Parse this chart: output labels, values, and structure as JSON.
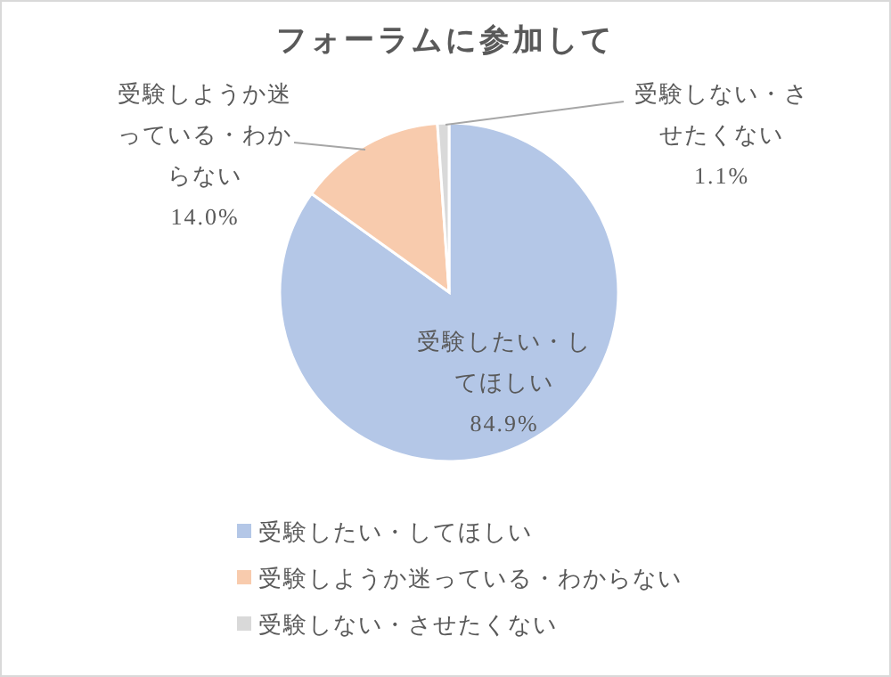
{
  "chart_data": {
    "type": "pie",
    "title": "フォーラムに参加して",
    "categories": [
      "受験したい・してほしい",
      "受験しようか迷っている・わからない",
      "受験しない・させたくない"
    ],
    "values": [
      84.9,
      14.0,
      1.1
    ],
    "colors": [
      "#b4c7e7",
      "#f8cbad",
      "#d9d9d9"
    ],
    "data_labels": true,
    "value_labels": [
      "84.9%",
      "14.0%",
      "1.1%"
    ],
    "legend": "bottom"
  }
}
